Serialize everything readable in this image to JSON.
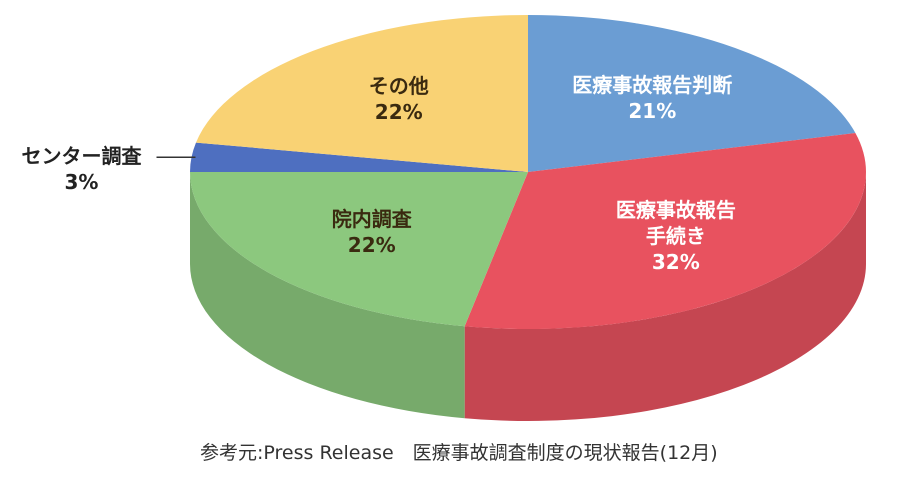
{
  "chart_data": {
    "type": "pie",
    "categories": [
      "医療事故報告判断",
      "医療事故報告\n手続き",
      "院内調査",
      "センター調査",
      "その他"
    ],
    "values": [
      21,
      32,
      22,
      3,
      22
    ],
    "value_labels": [
      "21%",
      "32%",
      "22%",
      "3%",
      "22%"
    ],
    "colors": [
      "#6b9dd3",
      "#e8525f",
      "#8cc87e",
      "#4e6fc0",
      "#f9d274"
    ],
    "source": "参考元:Press Release　医療事故調査制度の現状報告(12月)"
  }
}
